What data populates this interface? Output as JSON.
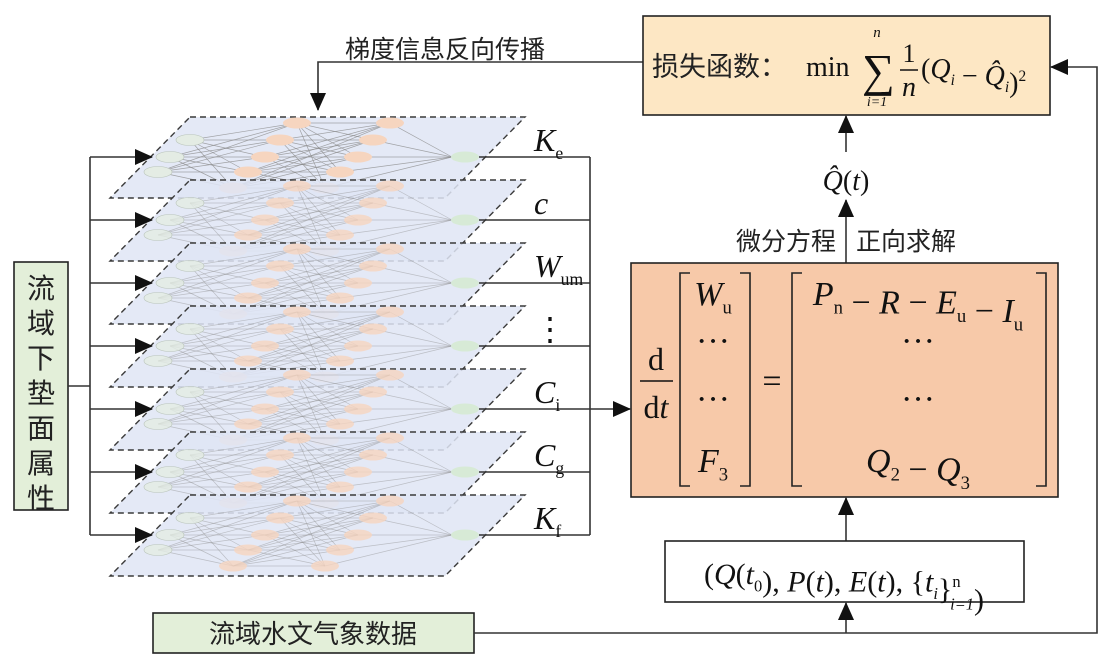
{
  "colors": {
    "loss_box": "#fde7c4",
    "ode_box": "#f7c9a9",
    "green_box": "#e3efd9",
    "layer_fill": "#dfe5f4",
    "input_node": "#e4ece4",
    "hidden_node": "#f6d5bf",
    "output_node": "#d7ead6"
  },
  "backprop_label": "梯度信息反向传播",
  "loss_box": {
    "prefix": "损失函数：",
    "min": "min",
    "sum_symbol": "∑",
    "sum_upper": "n",
    "sum_lower": "i=1",
    "frac_num": "1",
    "frac_den": "n",
    "body": [
      {
        "t": "("
      },
      {
        "t": "Q",
        "i": true,
        "sub": "i"
      },
      {
        "t": " − "
      },
      {
        "t": "Q̂",
        "i": true,
        "sub": "i"
      },
      {
        "t": ")",
        "sup": "2"
      }
    ]
  },
  "q_hat": [
    {
      "t": "Q̂",
      "i": true
    },
    {
      "t": "("
    },
    {
      "t": "t",
      "i": true
    },
    {
      "t": ")"
    }
  ],
  "ode_label_left": "微分方程",
  "ode_label_right": "正向求解",
  "ode": {
    "deriv_num": "d",
    "deriv_den": [
      {
        "t": "d"
      },
      {
        "t": "t",
        "i": true
      }
    ],
    "equals": "=",
    "lhs_rows": [
      [
        {
          "t": "W",
          "i": true,
          "sub": "u"
        }
      ],
      [
        {
          "t": "···"
        }
      ],
      [
        {
          "t": "···"
        }
      ],
      [
        {
          "t": "F",
          "i": true,
          "sub": "3"
        }
      ]
    ],
    "rhs_rows": [
      [
        {
          "t": "P",
          "i": true,
          "sub": "n"
        },
        {
          "t": " − "
        },
        {
          "t": "R",
          "i": true
        },
        {
          "t": " − "
        },
        {
          "t": "E",
          "i": true,
          "sub": "u"
        },
        {
          "t": " − "
        },
        {
          "t": "I",
          "i": true,
          "sub": "u"
        }
      ],
      [
        {
          "t": "···"
        }
      ],
      [
        {
          "t": "···"
        }
      ],
      [
        {
          "t": "Q",
          "i": true,
          "sub": "2"
        },
        {
          "t": " − "
        },
        {
          "t": "Q",
          "i": true,
          "sub": "3"
        }
      ]
    ]
  },
  "inputs_box": [
    {
      "t": "("
    },
    {
      "t": "Q",
      "i": true
    },
    {
      "t": "("
    },
    {
      "t": "t",
      "i": true,
      "sub": "0"
    },
    {
      "t": "), "
    },
    {
      "t": "P",
      "i": true
    },
    {
      "t": "("
    },
    {
      "t": "t",
      "i": true
    },
    {
      "t": "), "
    },
    {
      "t": "E",
      "i": true
    },
    {
      "t": "("
    },
    {
      "t": "t",
      "i": true
    },
    {
      "t": "), {"
    },
    {
      "t": "t",
      "i": true,
      "sub": "i"
    },
    {
      "t": "}",
      "sup": "n",
      "sub2": "i=1"
    },
    {
      "t": ")"
    }
  ],
  "attributes_box": "流域下垫面属性",
  "hydromet_box": "流域水文气象数据",
  "layers": [
    {
      "label": [
        {
          "t": "K",
          "i": true,
          "sub": "e"
        }
      ]
    },
    {
      "label": [
        {
          "t": "c",
          "i": true
        }
      ]
    },
    {
      "label": [
        {
          "t": "W",
          "i": true,
          "sub": "um"
        }
      ]
    },
    {
      "label": [
        {
          "t": "⋮"
        }
      ]
    },
    {
      "label": [
        {
          "t": "C",
          "i": true,
          "sub": "i"
        }
      ]
    },
    {
      "label": [
        {
          "t": "C",
          "i": true,
          "sub": "g"
        }
      ]
    },
    {
      "label": [
        {
          "t": "K",
          "i": true,
          "sub": "f"
        }
      ]
    }
  ]
}
